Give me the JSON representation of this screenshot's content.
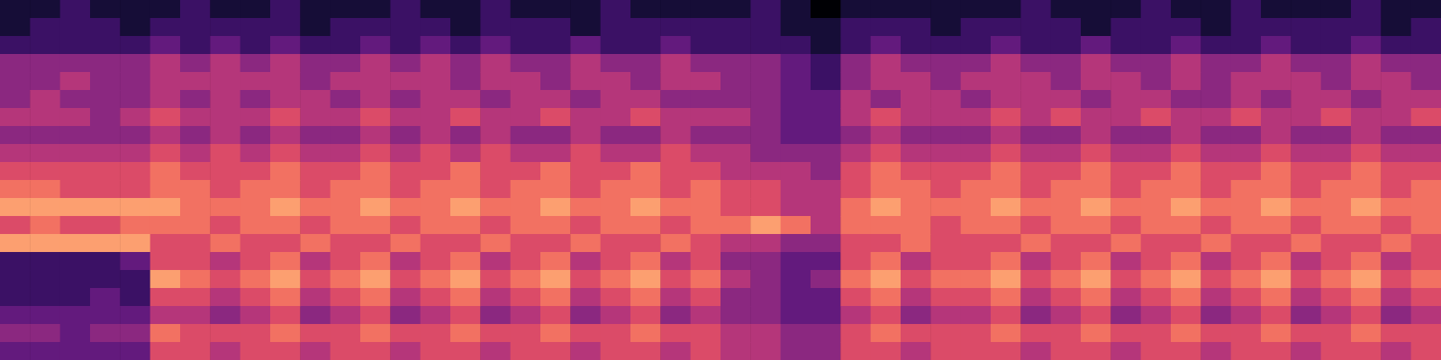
{
  "chart_data": {
    "type": "heatmap",
    "tick_labels": false,
    "color_range": [
      0,
      10
    ],
    "cells": [
      [
        1,
        1,
        2,
        1,
        1,
        1,
        2,
        1,
        1,
        2,
        1,
        1,
        1,
        2,
        1,
        1,
        2,
        1,
        1,
        1,
        2,
        1,
        1,
        1,
        1,
        2,
        1,
        0,
        1,
        1,
        1,
        1,
        1,
        1,
        2,
        1,
        1,
        1,
        2,
        1,
        1,
        2,
        1,
        1,
        1,
        2,
        1,
        1
      ],
      [
        1,
        2,
        2,
        2,
        1,
        2,
        2,
        2,
        2,
        2,
        1,
        2,
        2,
        2,
        2,
        1,
        2,
        2,
        2,
        1,
        2,
        2,
        2,
        2,
        2,
        2,
        1,
        1,
        2,
        2,
        2,
        1,
        2,
        2,
        2,
        2,
        1,
        2,
        2,
        2,
        1,
        2,
        2,
        2,
        2,
        2,
        1,
        2
      ],
      [
        2,
        2,
        2,
        2,
        2,
        3,
        2,
        3,
        2,
        3,
        2,
        2,
        3,
        2,
        3,
        2,
        3,
        2,
        2,
        3,
        2,
        2,
        3,
        2,
        2,
        2,
        2,
        1,
        2,
        3,
        2,
        2,
        2,
        3,
        2,
        2,
        3,
        2,
        2,
        3,
        2,
        2,
        3,
        2,
        2,
        3,
        2,
        2
      ],
      [
        4,
        4,
        4,
        4,
        4,
        5,
        4,
        5,
        4,
        5,
        4,
        4,
        5,
        4,
        5,
        4,
        5,
        4,
        4,
        5,
        4,
        4,
        5,
        4,
        4,
        4,
        3,
        2,
        4,
        5,
        4,
        4,
        4,
        5,
        4,
        4,
        5,
        4,
        4,
        5,
        4,
        4,
        5,
        4,
        4,
        5,
        4,
        4
      ],
      [
        4,
        4,
        5,
        4,
        4,
        5,
        5,
        5,
        5,
        5,
        4,
        5,
        5,
        5,
        5,
        4,
        5,
        5,
        4,
        5,
        5,
        4,
        5,
        5,
        4,
        4,
        3,
        2,
        4,
        5,
        5,
        4,
        5,
        5,
        5,
        4,
        5,
        5,
        4,
        5,
        4,
        5,
        5,
        5,
        4,
        5,
        5,
        4
      ],
      [
        4,
        5,
        4,
        4,
        4,
        5,
        4,
        5,
        4,
        5,
        5,
        4,
        5,
        4,
        5,
        5,
        4,
        5,
        5,
        4,
        5,
        5,
        4,
        4,
        4,
        4,
        3,
        3,
        5,
        4,
        5,
        5,
        4,
        5,
        5,
        5,
        4,
        5,
        5,
        4,
        4,
        5,
        4,
        5,
        5,
        4,
        5,
        5
      ],
      [
        5,
        5,
        5,
        4,
        5,
        6,
        5,
        5,
        5,
        6,
        5,
        5,
        6,
        5,
        5,
        6,
        5,
        5,
        6,
        5,
        5,
        6,
        5,
        5,
        5,
        4,
        3,
        3,
        5,
        6,
        5,
        5,
        5,
        6,
        5,
        6,
        5,
        5,
        6,
        5,
        5,
        6,
        5,
        5,
        6,
        5,
        5,
        6
      ],
      [
        4,
        4,
        4,
        4,
        4,
        5,
        4,
        5,
        4,
        5,
        4,
        4,
        5,
        4,
        5,
        4,
        5,
        4,
        4,
        5,
        4,
        4,
        5,
        4,
        4,
        4,
        3,
        3,
        4,
        5,
        4,
        4,
        4,
        5,
        4,
        4,
        5,
        4,
        4,
        5,
        4,
        4,
        5,
        4,
        4,
        5,
        4,
        4
      ],
      [
        5,
        5,
        5,
        5,
        5,
        6,
        5,
        6,
        5,
        6,
        5,
        5,
        6,
        5,
        6,
        5,
        6,
        5,
        5,
        6,
        5,
        5,
        6,
        5,
        5,
        4,
        4,
        4,
        5,
        6,
        5,
        5,
        5,
        6,
        5,
        5,
        6,
        5,
        5,
        6,
        5,
        5,
        6,
        5,
        5,
        6,
        5,
        5
      ],
      [
        6,
        6,
        6,
        6,
        6,
        7,
        6,
        6,
        6,
        7,
        6,
        6,
        7,
        6,
        6,
        7,
        6,
        6,
        7,
        6,
        6,
        7,
        6,
        6,
        5,
        5,
        5,
        4,
        6,
        7,
        6,
        6,
        6,
        7,
        6,
        6,
        7,
        6,
        6,
        7,
        6,
        6,
        7,
        6,
        6,
        7,
        6,
        6
      ],
      [
        7,
        7,
        6,
        6,
        6,
        7,
        7,
        6,
        7,
        7,
        6,
        7,
        7,
        6,
        7,
        7,
        6,
        7,
        7,
        6,
        7,
        7,
        6,
        7,
        6,
        6,
        5,
        5,
        6,
        7,
        7,
        6,
        7,
        7,
        6,
        7,
        7,
        6,
        7,
        7,
        6,
        7,
        7,
        6,
        7,
        7,
        6,
        7
      ],
      [
        8,
        8,
        8,
        8,
        8,
        8,
        7,
        7,
        7,
        8,
        7,
        7,
        8,
        7,
        7,
        8,
        7,
        7,
        8,
        7,
        7,
        8,
        7,
        7,
        6,
        6,
        5,
        5,
        7,
        8,
        7,
        7,
        7,
        8,
        7,
        7,
        8,
        7,
        7,
        8,
        7,
        7,
        8,
        7,
        7,
        8,
        7,
        7
      ],
      [
        6,
        7,
        6,
        6,
        7,
        7,
        7,
        6,
        7,
        7,
        6,
        7,
        7,
        6,
        7,
        7,
        6,
        7,
        7,
        6,
        7,
        7,
        6,
        7,
        7,
        8,
        7,
        5,
        7,
        7,
        7,
        6,
        7,
        7,
        6,
        7,
        7,
        6,
        7,
        7,
        6,
        7,
        7,
        6,
        7,
        7,
        6,
        7
      ],
      [
        8,
        8,
        8,
        8,
        8,
        6,
        6,
        7,
        6,
        6,
        7,
        6,
        6,
        7,
        6,
        6,
        7,
        6,
        6,
        7,
        6,
        6,
        7,
        6,
        5,
        5,
        4,
        4,
        6,
        6,
        7,
        6,
        6,
        6,
        7,
        6,
        6,
        7,
        6,
        6,
        7,
        6,
        6,
        7,
        6,
        6,
        7,
        6
      ],
      [
        2,
        2,
        2,
        2,
        3,
        6,
        6,
        5,
        6,
        7,
        5,
        6,
        7,
        5,
        6,
        7,
        5,
        6,
        7,
        5,
        6,
        7,
        5,
        6,
        4,
        4,
        3,
        3,
        6,
        7,
        5,
        6,
        6,
        7,
        5,
        6,
        7,
        5,
        6,
        7,
        5,
        6,
        7,
        5,
        6,
        7,
        5,
        6
      ],
      [
        2,
        2,
        2,
        2,
        2,
        8,
        7,
        6,
        7,
        8,
        6,
        7,
        8,
        6,
        7,
        8,
        6,
        7,
        8,
        6,
        7,
        8,
        6,
        7,
        5,
        4,
        3,
        4,
        7,
        8,
        6,
        7,
        7,
        8,
        6,
        7,
        8,
        6,
        7,
        8,
        6,
        7,
        8,
        6,
        7,
        8,
        6,
        7
      ],
      [
        2,
        2,
        2,
        3,
        2,
        6,
        6,
        5,
        6,
        7,
        5,
        6,
        7,
        5,
        6,
        7,
        5,
        6,
        7,
        5,
        6,
        7,
        5,
        6,
        4,
        4,
        3,
        3,
        6,
        7,
        5,
        6,
        6,
        7,
        5,
        6,
        7,
        5,
        6,
        7,
        5,
        6,
        7,
        5,
        6,
        7,
        5,
        6
      ],
      [
        3,
        3,
        3,
        3,
        3,
        5,
        5,
        4,
        5,
        6,
        4,
        5,
        6,
        4,
        5,
        6,
        4,
        5,
        6,
        4,
        5,
        6,
        4,
        5,
        4,
        4,
        3,
        3,
        5,
        6,
        4,
        5,
        5,
        6,
        4,
        5,
        6,
        4,
        5,
        6,
        4,
        5,
        6,
        4,
        5,
        6,
        4,
        5
      ],
      [
        4,
        4,
        3,
        4,
        4,
        7,
        6,
        6,
        6,
        7,
        6,
        6,
        7,
        6,
        6,
        7,
        6,
        6,
        7,
        6,
        6,
        7,
        6,
        6,
        5,
        5,
        4,
        4,
        6,
        7,
        6,
        6,
        6,
        7,
        6,
        6,
        7,
        6,
        6,
        7,
        6,
        6,
        7,
        6,
        6,
        7,
        6,
        6
      ],
      [
        3,
        3,
        3,
        3,
        3,
        6,
        6,
        5,
        6,
        6,
        5,
        6,
        6,
        5,
        6,
        6,
        5,
        6,
        6,
        5,
        6,
        6,
        5,
        6,
        5,
        5,
        4,
        4,
        6,
        6,
        5,
        6,
        6,
        6,
        5,
        6,
        6,
        5,
        6,
        6,
        5,
        6,
        6,
        5,
        6,
        6,
        5,
        6
      ]
    ]
  }
}
